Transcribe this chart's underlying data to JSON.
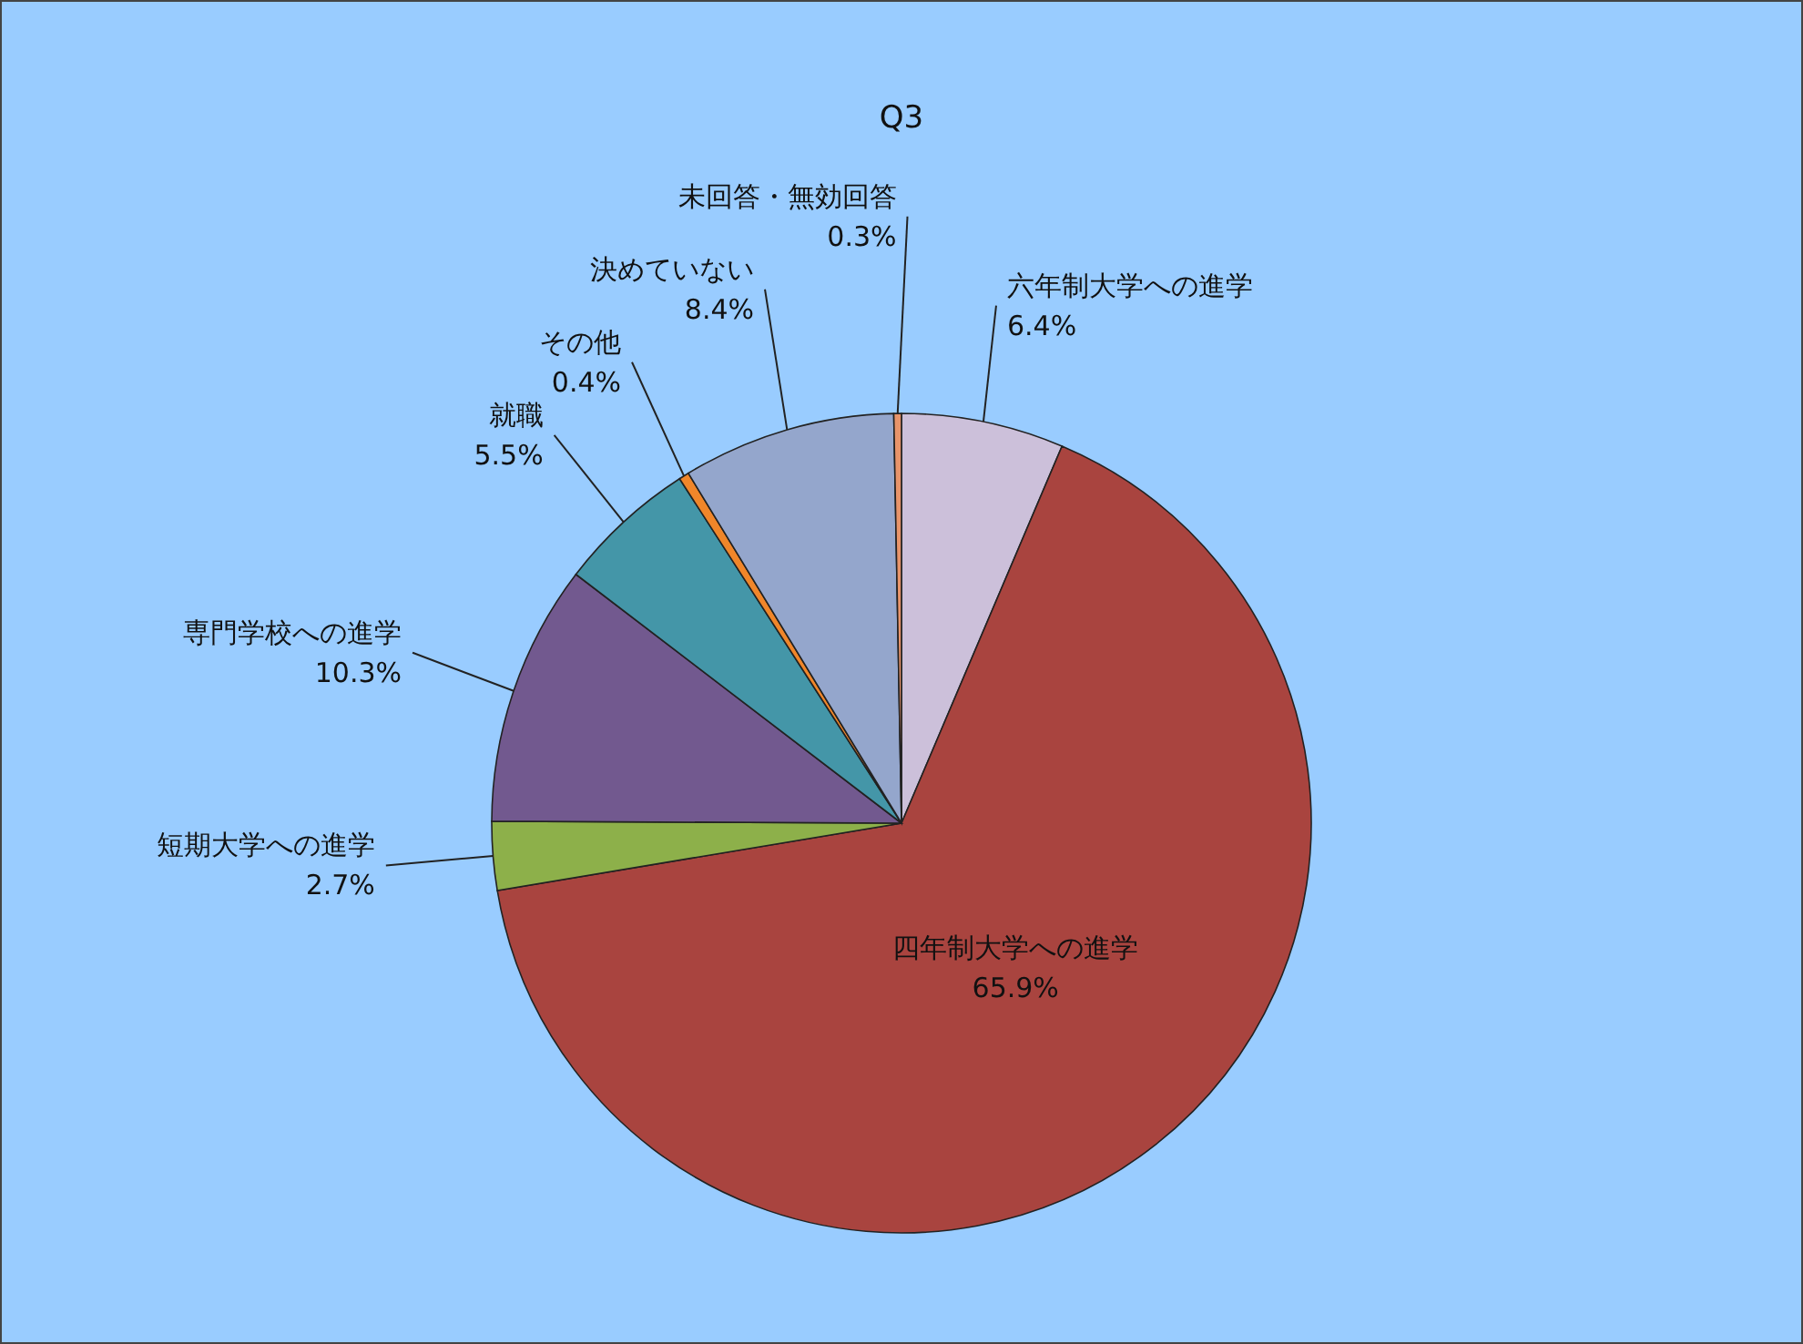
{
  "chart_data": {
    "type": "pie",
    "title": "Q3",
    "categories": [
      "六年制大学への進学",
      "四年制大学への進学",
      "短期大学への進学",
      "専門学校への進学",
      "就職",
      "その他",
      "決めていない",
      "未回答・無効回答"
    ],
    "values": [
      6.4,
      65.9,
      2.7,
      10.3,
      5.5,
      0.4,
      8.4,
      0.3
    ],
    "colors": [
      "#ccc0da",
      "#a9443f",
      "#8db04a",
      "#72598f",
      "#4496a8",
      "#f0862a",
      "#94a6cc",
      "#e8946a"
    ],
    "value_labels": [
      "6.4%",
      "65.9%",
      "2.7%",
      "10.3%",
      "5.5%",
      "0.4%",
      "8.4%",
      "0.3%"
    ]
  }
}
